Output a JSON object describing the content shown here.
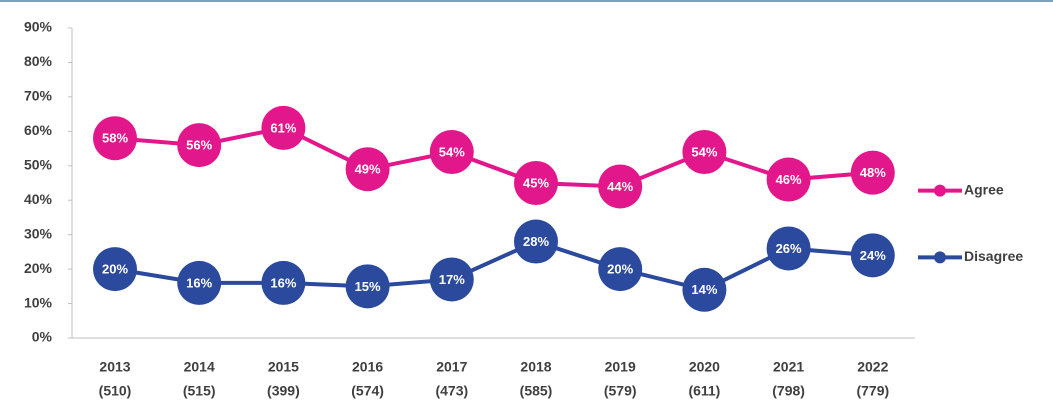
{
  "chart_data": {
    "type": "line",
    "categories": [
      "2013",
      "2014",
      "2015",
      "2016",
      "2017",
      "2018",
      "2019",
      "2020",
      "2021",
      "2022"
    ],
    "category_counts": [
      "(510)",
      "(515)",
      "(399)",
      "(574)",
      "(473)",
      "(585)",
      "(579)",
      "(611)",
      "(798)",
      "(779)"
    ],
    "series": [
      {
        "name": "Agree",
        "color": "#e3178c",
        "values": [
          58,
          56,
          61,
          49,
          54,
          45,
          44,
          54,
          46,
          48
        ],
        "value_labels": [
          "58%",
          "56%",
          "61%",
          "49%",
          "54%",
          "45%",
          "44%",
          "54%",
          "46%",
          "48%"
        ]
      },
      {
        "name": "Disagree",
        "color": "#2b4a9d",
        "values": [
          20,
          16,
          16,
          15,
          17,
          28,
          20,
          14,
          26,
          24
        ],
        "value_labels": [
          "20%",
          "16%",
          "16%",
          "15%",
          "17%",
          "28%",
          "20%",
          "14%",
          "26%",
          "24%"
        ]
      }
    ],
    "ylim": [
      0,
      90
    ],
    "yticks": [
      {
        "value": 0,
        "label": "0%"
      },
      {
        "value": 10,
        "label": "10%"
      },
      {
        "value": 20,
        "label": "20%"
      },
      {
        "value": 30,
        "label": "30%"
      },
      {
        "value": 40,
        "label": "40%"
      },
      {
        "value": 50,
        "label": "50%"
      },
      {
        "value": 60,
        "label": "60%"
      },
      {
        "value": 70,
        "label": "70%"
      },
      {
        "value": 80,
        "label": "80%"
      },
      {
        "value": 90,
        "label": "90%"
      }
    ],
    "grid": false,
    "legend": "right"
  }
}
